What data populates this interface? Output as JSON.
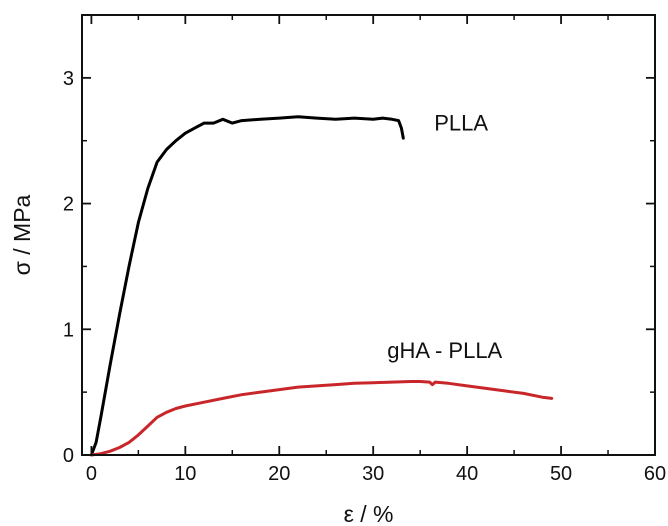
{
  "chart_data": {
    "type": "line",
    "xlabel": "ε / %",
    "ylabel": "σ / MPa",
    "xlim": [
      -1,
      60
    ],
    "ylim": [
      0,
      3.5
    ],
    "x_ticks": [
      0,
      10,
      20,
      30,
      40,
      50,
      60
    ],
    "x_tick_labels": [
      "0",
      "10",
      "20",
      "30",
      "40",
      "50",
      "60"
    ],
    "y_ticks": [
      0,
      1,
      2,
      3
    ],
    "y_tick_labels": [
      "0",
      "1",
      "2",
      "3"
    ],
    "grid": false,
    "series": [
      {
        "name": "PLLA",
        "color": "#000000",
        "x": [
          0,
          0.5,
          1,
          2,
          3,
          4,
          5,
          6,
          7,
          8,
          9,
          10,
          11,
          12,
          13,
          14,
          15,
          16,
          18,
          20,
          22,
          24,
          26,
          28,
          30,
          31,
          32,
          32.7,
          33,
          33.2
        ],
        "y": [
          0,
          0.1,
          0.3,
          0.72,
          1.12,
          1.5,
          1.85,
          2.12,
          2.33,
          2.43,
          2.5,
          2.56,
          2.6,
          2.64,
          2.64,
          2.67,
          2.64,
          2.66,
          2.67,
          2.68,
          2.69,
          2.68,
          2.67,
          2.68,
          2.67,
          2.68,
          2.67,
          2.66,
          2.6,
          2.52
        ]
      },
      {
        "name": "gHA - PLLA",
        "color": "#c8262a",
        "x": [
          0,
          1,
          2,
          3,
          4,
          5,
          6,
          7,
          8,
          9,
          10,
          12,
          14,
          16,
          18,
          20,
          22,
          24,
          26,
          28,
          30,
          32,
          34,
          35,
          36,
          36.3,
          36.6,
          38,
          40,
          42,
          44,
          46,
          48,
          49
        ],
        "y": [
          0,
          0.01,
          0.03,
          0.06,
          0.1,
          0.16,
          0.23,
          0.3,
          0.34,
          0.37,
          0.39,
          0.42,
          0.45,
          0.48,
          0.5,
          0.52,
          0.54,
          0.55,
          0.56,
          0.57,
          0.575,
          0.58,
          0.585,
          0.585,
          0.58,
          0.56,
          0.58,
          0.57,
          0.55,
          0.53,
          0.51,
          0.49,
          0.46,
          0.45
        ]
      }
    ],
    "annotations": [
      {
        "text": "PLLA",
        "x": 36.5,
        "y": 2.58
      },
      {
        "text": "gHA - PLLA",
        "x": 31.5,
        "y": 0.77
      }
    ]
  }
}
